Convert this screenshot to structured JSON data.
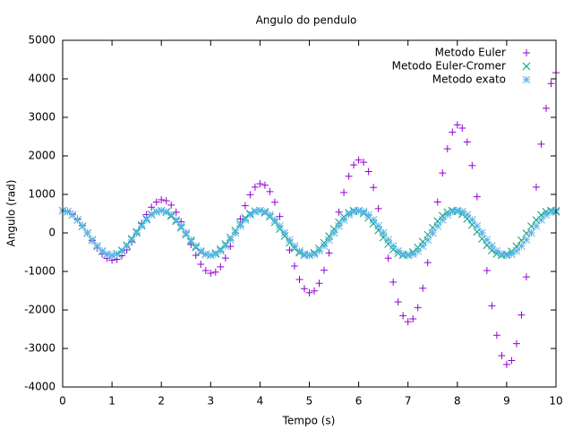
{
  "chart_data": {
    "type": "scatter",
    "title": "Angulo do pendulo",
    "x_label": "Tempo (s)",
    "y_label": "Angulo (rad)",
    "xlim": [
      0,
      10
    ],
    "xticks": [
      0,
      1,
      2,
      3,
      4,
      5,
      6,
      7,
      8,
      9,
      10
    ],
    "ylim": [
      -4000,
      5000
    ],
    "yticks": [
      -4000,
      -3000,
      -2000,
      -1000,
      0,
      1000,
      2000,
      3000,
      4000,
      5000
    ],
    "legend": "upper right",
    "x": [
      0,
      0.1,
      0.2,
      0.3,
      0.4,
      0.5,
      0.6,
      0.7,
      0.8,
      0.9,
      1,
      1.1,
      1.2,
      1.3,
      1.4,
      1.5,
      1.6,
      1.7,
      1.8,
      1.9,
      2,
      2.1,
      2.2,
      2.3,
      2.4,
      2.5,
      2.6,
      2.7,
      2.8,
      2.9,
      3,
      3.1,
      3.2,
      3.3,
      3.4,
      3.5,
      3.6,
      3.7,
      3.8,
      3.9,
      4,
      4.1,
      4.2,
      4.3,
      4.4,
      4.5,
      4.6,
      4.7,
      4.8,
      4.9,
      5,
      5.1,
      5.2,
      5.3,
      5.4,
      5.5,
      5.6,
      5.7,
      5.8,
      5.9,
      6,
      6.1,
      6.2,
      6.3,
      6.4,
      6.5,
      6.6,
      6.7,
      6.8,
      6.9,
      7,
      7.1,
      7.2,
      7.3,
      7.4,
      7.5,
      7.6,
      7.7,
      7.8,
      7.9,
      8,
      8.1,
      8.2,
      8.3,
      8.4,
      8.5,
      8.6,
      8.7,
      8.8,
      8.9,
      9,
      9.1,
      9.2,
      9.3,
      9.4,
      9.5,
      9.6,
      9.7,
      9.8,
      9.9,
      10
    ],
    "series": [
      {
        "name": "Metodo Euler",
        "color": "#9400d3",
        "marker": "+",
        "values": [
          580,
          563,
          488,
          362,
          194,
          0,
          -202,
          -391,
          -549,
          -659,
          -706,
          -685,
          -594,
          -441,
          -236,
          0,
          246,
          477,
          669,
          802,
          860,
          834,
          724,
          537,
          288,
          0,
          -299,
          -581,
          -815,
          -977,
          -1047,
          -1016,
          -881,
          -653,
          -350,
          0,
          364,
          707,
          992,
          1189,
          1276,
          1237,
          1073,
          796,
          426,
          0,
          -444,
          -861,
          -1208,
          -1448,
          -1553,
          -1507,
          -1307,
          -969,
          -519,
          0,
          540,
          1048,
          1471,
          1764,
          1892,
          1835,
          1592,
          1180,
          632,
          0,
          -658,
          -1277,
          -1792,
          -2148,
          -2304,
          -2234,
          -1938,
          -1437,
          -770,
          0,
          801,
          1555,
          2182,
          2616,
          2805,
          2721,
          2361,
          1750,
          938,
          0,
          -976,
          -1893,
          -2657,
          -3185,
          -3416,
          -3313,
          -2875,
          -2131,
          -1142,
          0,
          1188,
          2306,
          3236,
          3879,
          4160
        ]
      },
      {
        "name": "Metodo Euler-Cromer",
        "color": "#009e73",
        "marker": "x",
        "values": [
          580,
          551,
          466,
          336,
          172,
          -9,
          -189,
          -350,
          -476,
          -555,
          -577,
          -543,
          -454,
          -320,
          -154,
          27,
          205,
          363,
          484,
          557,
          578,
          535,
          441,
          304,
          136,
          -45,
          -221,
          -376,
          -492,
          -560,
          -577,
          -526,
          -428,
          -288,
          -118,
          63,
          237,
          388,
          501,
          563,
          575,
          524,
          420,
          275,
          102,
          -82,
          -257,
          -406,
          -515,
          -572,
          -573,
          -516,
          -407,
          -259,
          -84,
          100,
          273,
          419,
          523,
          575,
          570,
          507,
          394,
          242,
          66,
          -118,
          -289,
          -432,
          -531,
          -577,
          -566,
          -498,
          -380,
          -226,
          -48,
          135,
          305,
          444,
          538,
          579,
          562,
          489,
          367,
          209,
          29,
          -153,
          -320,
          -455,
          -544,
          -580,
          -557,
          -479,
          -352,
          -192,
          -11,
          171,
          334,
          465,
          550,
          580,
          552
        ]
      },
      {
        "name": "Metodo exato",
        "color": "#56b4e9",
        "marker": "*",
        "values": [
          580,
          552,
          469,
          341,
          179,
          0,
          -179,
          -341,
          -469,
          -552,
          -580,
          -552,
          -469,
          -341,
          -179,
          0,
          179,
          341,
          469,
          552,
          580,
          552,
          469,
          341,
          179,
          0,
          -179,
          -341,
          -469,
          -552,
          -580,
          -552,
          -469,
          -341,
          -179,
          0,
          179,
          341,
          469,
          552,
          580,
          552,
          469,
          341,
          179,
          0,
          -179,
          -341,
          -469,
          -552,
          -580,
          -552,
          -469,
          -341,
          -179,
          0,
          179,
          341,
          469,
          552,
          580,
          552,
          469,
          341,
          179,
          0,
          -179,
          -341,
          -469,
          -552,
          -580,
          -552,
          -469,
          -341,
          -179,
          0,
          179,
          341,
          469,
          552,
          580,
          552,
          469,
          341,
          179,
          0,
          -179,
          -341,
          -469,
          -552,
          -580,
          -552,
          -469,
          -341,
          -179,
          0,
          179,
          341,
          469,
          552,
          580
        ]
      }
    ]
  }
}
